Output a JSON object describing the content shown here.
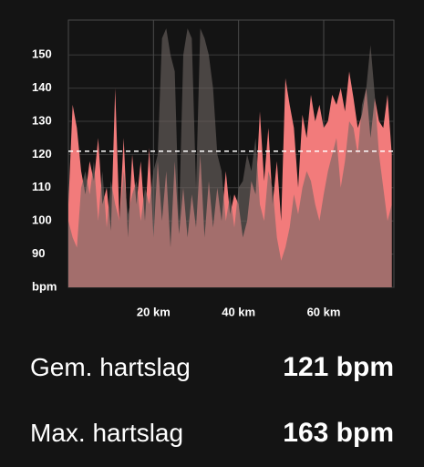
{
  "chart_data": {
    "type": "area",
    "x": [
      0,
      1,
      2,
      3,
      4,
      5,
      6,
      7,
      8,
      9,
      10,
      11,
      12,
      13,
      14,
      15,
      16,
      17,
      18,
      19,
      20,
      21,
      22,
      23,
      24,
      25,
      26,
      27,
      28,
      29,
      30,
      31,
      32,
      33,
      34,
      35,
      36,
      37,
      38,
      39,
      40,
      41,
      42,
      43,
      44,
      45,
      46,
      47,
      48,
      49,
      50,
      51,
      52,
      53,
      54,
      55,
      56,
      57,
      58,
      59,
      60,
      61,
      62,
      63,
      64,
      65,
      66,
      67,
      68,
      69,
      70,
      71,
      72,
      73,
      74,
      75,
      76
    ],
    "series": [
      {
        "color": "#f27b7b",
        "values": [
          105,
          135,
          128,
          115,
          108,
          118,
          112,
          125,
          105,
          110,
          97,
          140,
          100,
          125,
          95,
          120,
          105,
          118,
          100,
          122,
          95,
          118,
          100,
          115,
          92,
          118,
          96,
          110,
          95,
          108,
          98,
          120,
          95,
          112,
          98,
          110,
          100,
          115,
          102,
          108,
          105,
          95,
          100,
          112,
          108,
          133,
          112,
          128,
          105,
          118,
          100,
          143,
          135,
          128,
          110,
          132,
          125,
          138,
          130,
          135,
          128,
          130,
          138,
          135,
          140,
          133,
          145,
          137,
          128,
          132,
          140,
          125,
          137,
          130,
          128,
          138,
          120
        ]
      },
      {
        "color": "#6e6663",
        "values": [
          100,
          95,
          92,
          110,
          115,
          108,
          118,
          100,
          115,
          98,
          112,
          105,
          100,
          115,
          102,
          108,
          112,
          100,
          110,
          105,
          115,
          120,
          155,
          158,
          150,
          145,
          100,
          150,
          158,
          155,
          110,
          158,
          155,
          150,
          140,
          120,
          115,
          100,
          108,
          98,
          110,
          112,
          120,
          115,
          125,
          105,
          100,
          115,
          110,
          95,
          88,
          92,
          98,
          108,
          102,
          110,
          115,
          112,
          105,
          100,
          108,
          115,
          120,
          125,
          110,
          118,
          130,
          128,
          120,
          135,
          140,
          153,
          138,
          120,
          110,
          100,
          105
        ]
      }
    ],
    "average_line": 121,
    "xlim": [
      0,
      76.5
    ],
    "ylim": [
      80,
      160.5
    ],
    "xticks": [
      {
        "value": 20,
        "label": "20 km"
      },
      {
        "value": 40,
        "label": "40 km"
      },
      {
        "value": 60,
        "label": "60 km"
      }
    ],
    "yticks": [
      {
        "value": 80,
        "label": "bpm"
      },
      90,
      100,
      110,
      120,
      130,
      140,
      150
    ],
    "grid": true
  },
  "stats": [
    {
      "label": "Gem. hartslag",
      "value": "121 bpm"
    },
    {
      "label": "Max. hartslag",
      "value": "163 bpm"
    }
  ]
}
